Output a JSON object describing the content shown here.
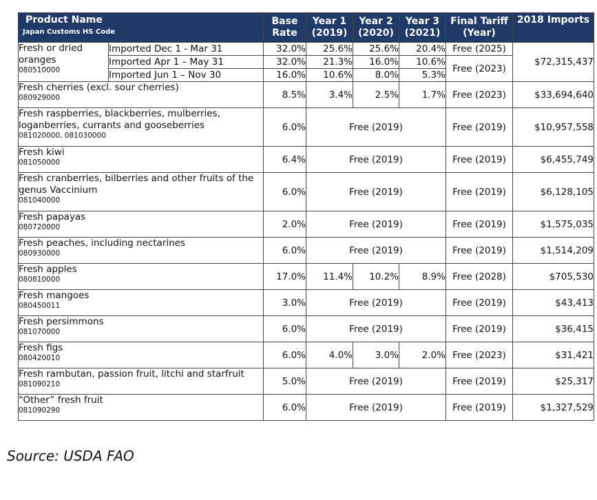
{
  "header": {
    "product_name": "Product Name",
    "hs_code": "Japan Customs HS Code",
    "base_rate": "Base Rate",
    "year1": "Year 1 (2019)",
    "year2": "Year 2 (2020)",
    "year3": "Year 3 (2021)",
    "final_tariff": "Final Tariff (Year)",
    "imports_2018": "2018 Imports"
  },
  "oranges": {
    "name": "Fresh or dried oranges",
    "code": "080510000",
    "imports": "$72,315,437",
    "periods": [
      {
        "period": "Imported Dec 1 - Mar 31",
        "base": "32.0%",
        "y1": "25.6%",
        "y2": "25.6%",
        "y3": "20.4%",
        "final": "Free (2025)"
      },
      {
        "period": "Imported Apr 1 – May 31",
        "base": "32.0%",
        "y1": "21.3%",
        "y2": "16.0%",
        "y3": "10.6%",
        "final": "Free (2023)"
      },
      {
        "period": "Imported Jun 1 – Nov 30",
        "base": "16.0%",
        "y1": "10.6%",
        "y2": "8.0%",
        "y3": "5.3%"
      }
    ]
  },
  "rows": [
    {
      "name": "Fresh cherries (excl. sour cherries)",
      "code": "080929000",
      "base": "8.5%",
      "y1": "3.4%",
      "y2": "2.5%",
      "y3": "1.7%",
      "final": "Free (2023)",
      "imports": "$33,694,640"
    },
    {
      "name": "Fresh raspberries, blackberries, mulberries, loganberries, currants and gooseberries",
      "code": "081020000, 081030000",
      "base": "6.0%",
      "merged": "Free (2019)",
      "final": "Free (2019)",
      "imports": "$10,957,558"
    },
    {
      "name": "Fresh kiwi",
      "code": "081050000",
      "base": "6.4%",
      "merged": "Free (2019)",
      "final": "Free (2019)",
      "imports": "$6,455,749"
    },
    {
      "name": "Fresh cranberries, bilberries and other fruits of the genus Vaccinium",
      "code": "081040000",
      "base": "6.0%",
      "merged": "Free (2019)",
      "final": "Free (2019)",
      "imports": "$6,128,105"
    },
    {
      "name": "Fresh papayas",
      "code": "080720000",
      "base": "2.0%",
      "merged": "Free (2019)",
      "final": "Free (2019)",
      "imports": "$1,575,035"
    },
    {
      "name": "Fresh peaches, including nectarines",
      "code": "080930000",
      "base": "6.0%",
      "merged": "Free (2019)",
      "final": "Free (2019)",
      "imports": "$1,514,209"
    },
    {
      "name": "Fresh apples",
      "code": "080810000",
      "base": "17.0%",
      "y1": "11.4%",
      "y2": "10.2%",
      "y3": "8.9%",
      "final": "Free (2028)",
      "imports": "$705,530"
    },
    {
      "name": "Fresh mangoes",
      "code": "080450011",
      "base": "3.0%",
      "merged": "Free (2019)",
      "final": "Free (2019)",
      "imports": "$43,413"
    },
    {
      "name": "Fresh persimmons",
      "code": "081070000",
      "base": "6.0%",
      "merged": "Free (2019)",
      "final": "Free (2019)",
      "imports": "$36,415"
    },
    {
      "name": "Fresh figs",
      "code": "080420010",
      "base": "6.0%",
      "y1": "4.0%",
      "y2": "3.0%",
      "y3": "2.0%",
      "final": "Free (2023)",
      "imports": "$31,421"
    },
    {
      "name": "Fresh rambutan, passion fruit, litchi and starfruit",
      "code": "081090210",
      "base": "5.0%",
      "merged": "Free (2019)",
      "final": "Free (2019)",
      "imports": "$25,317"
    },
    {
      "name": "“Other” fresh fruit",
      "code": "081090290",
      "base": "6.0%",
      "merged": "Free (2019)",
      "final": "Free (2019)",
      "imports": "$1,327,529"
    }
  ],
  "source": "Source: USDA FAO"
}
